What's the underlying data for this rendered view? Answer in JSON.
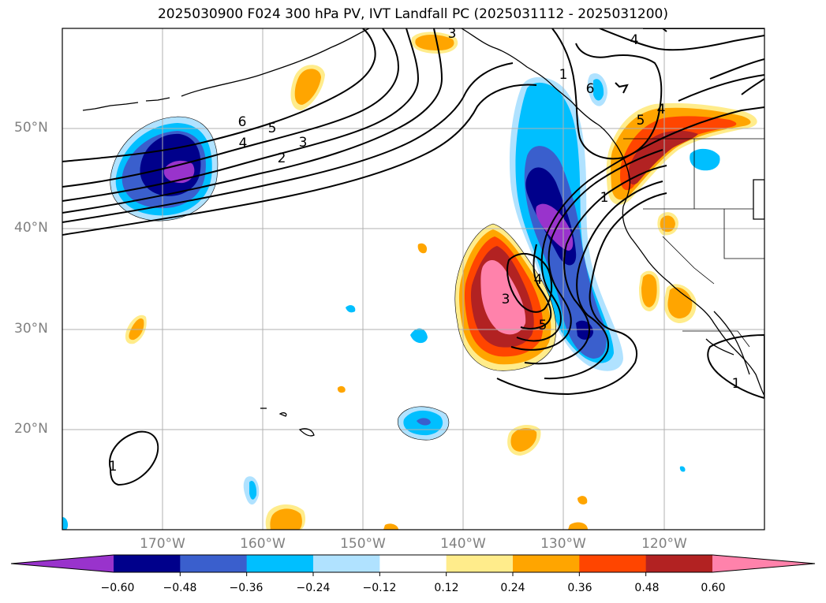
{
  "title": "2025030900 F024 300 hPa PV, IVT Landfall PC (2025031112 - 2025031200)",
  "map": {
    "lat_labels": [
      "50°N",
      "40°N",
      "30°N",
      "20°N"
    ],
    "lon_labels": [
      "170°W",
      "160°W",
      "150°W",
      "140°W",
      "130°W",
      "120°W"
    ],
    "contour_labels": [
      "6",
      "5",
      "4",
      "3",
      "2",
      "1",
      "1",
      "4",
      "3",
      "5",
      "4",
      "5",
      "4",
      "1",
      "1",
      "3",
      "6"
    ]
  },
  "colorbar": {
    "colors": [
      "#9933cc",
      "#00008b",
      "#3a5fcd",
      "#00bfff",
      "#b0e2ff",
      "#ffffff",
      "#ffec8b",
      "#ffa500",
      "#ff4500",
      "#b22222",
      "#ff82ab"
    ],
    "tick_labels": [
      "−0.60",
      "−0.48",
      "−0.36",
      "−0.24",
      "−0.12",
      "0.12",
      "0.24",
      "0.36",
      "0.48",
      "0.60"
    ]
  }
}
